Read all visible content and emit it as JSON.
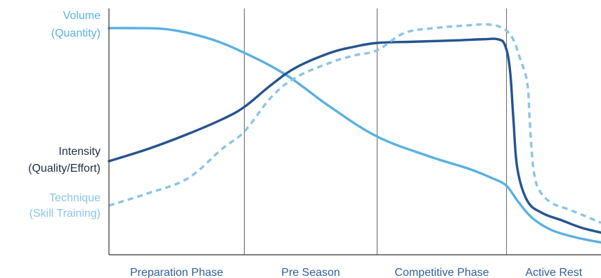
{
  "chart_data": {
    "type": "line",
    "title": "",
    "xlabel": "",
    "ylabel": "",
    "grid": false,
    "legend": "left",
    "xlim": [
      0,
      100
    ],
    "ylim": [
      0,
      100
    ],
    "phases": [
      {
        "label": "Preparation Phase",
        "start": 0,
        "end": 27.5
      },
      {
        "label": "Pre Season",
        "start": 27.5,
        "end": 54.5
      },
      {
        "label": "Competitive Phase",
        "start": 54.5,
        "end": 80.8
      },
      {
        "label": "Active Rest",
        "start": 80.8,
        "end": 100
      }
    ],
    "series": [
      {
        "label_line1": "Volume",
        "label_line2": "(Quantity)",
        "color": "#5ab0e0",
        "style": "solid",
        "x": [
          0,
          5,
          12,
          20,
          27.5,
          36,
          45,
          54.5,
          65,
          73,
          78,
          80.8,
          83,
          86,
          90,
          95,
          100
        ],
        "y": [
          92,
          92,
          91.5,
          88,
          82,
          73,
          60,
          48,
          40,
          35,
          31,
          28,
          22,
          15,
          10,
          7,
          5
        ]
      },
      {
        "label_line1": "Intensity",
        "label_line2": "(Quality/Effort)",
        "color": "#25548f",
        "style": "solid",
        "x": [
          0,
          8,
          16,
          23,
          27.5,
          33,
          38,
          45,
          50,
          54.5,
          62,
          70,
          76,
          79,
          80.5,
          81.5,
          82.2,
          83,
          85,
          88,
          92,
          96,
          100
        ],
        "y": [
          38,
          43,
          49,
          55,
          60,
          69,
          76,
          82,
          84.5,
          86,
          86.5,
          87,
          87.5,
          87.5,
          85,
          75,
          55,
          35,
          22,
          17,
          14,
          11,
          9
        ]
      },
      {
        "label_line1": "Technique",
        "label_line2": "(Skill Training)",
        "color": "#8cc4e8",
        "style": "dashed",
        "x": [
          0,
          8,
          16,
          23,
          27.5,
          33,
          38,
          45,
          50,
          54.5,
          60,
          66,
          72,
          77,
          80,
          82,
          83.5,
          85,
          85.5,
          86,
          86.5,
          87.5,
          90,
          94,
          100
        ],
        "y": [
          20,
          25,
          31,
          43,
          50,
          64,
          72,
          78,
          81,
          83,
          90,
          92,
          93,
          93.5,
          92,
          88,
          80,
          70,
          55,
          40,
          32,
          26,
          21,
          18,
          13
        ]
      }
    ]
  }
}
